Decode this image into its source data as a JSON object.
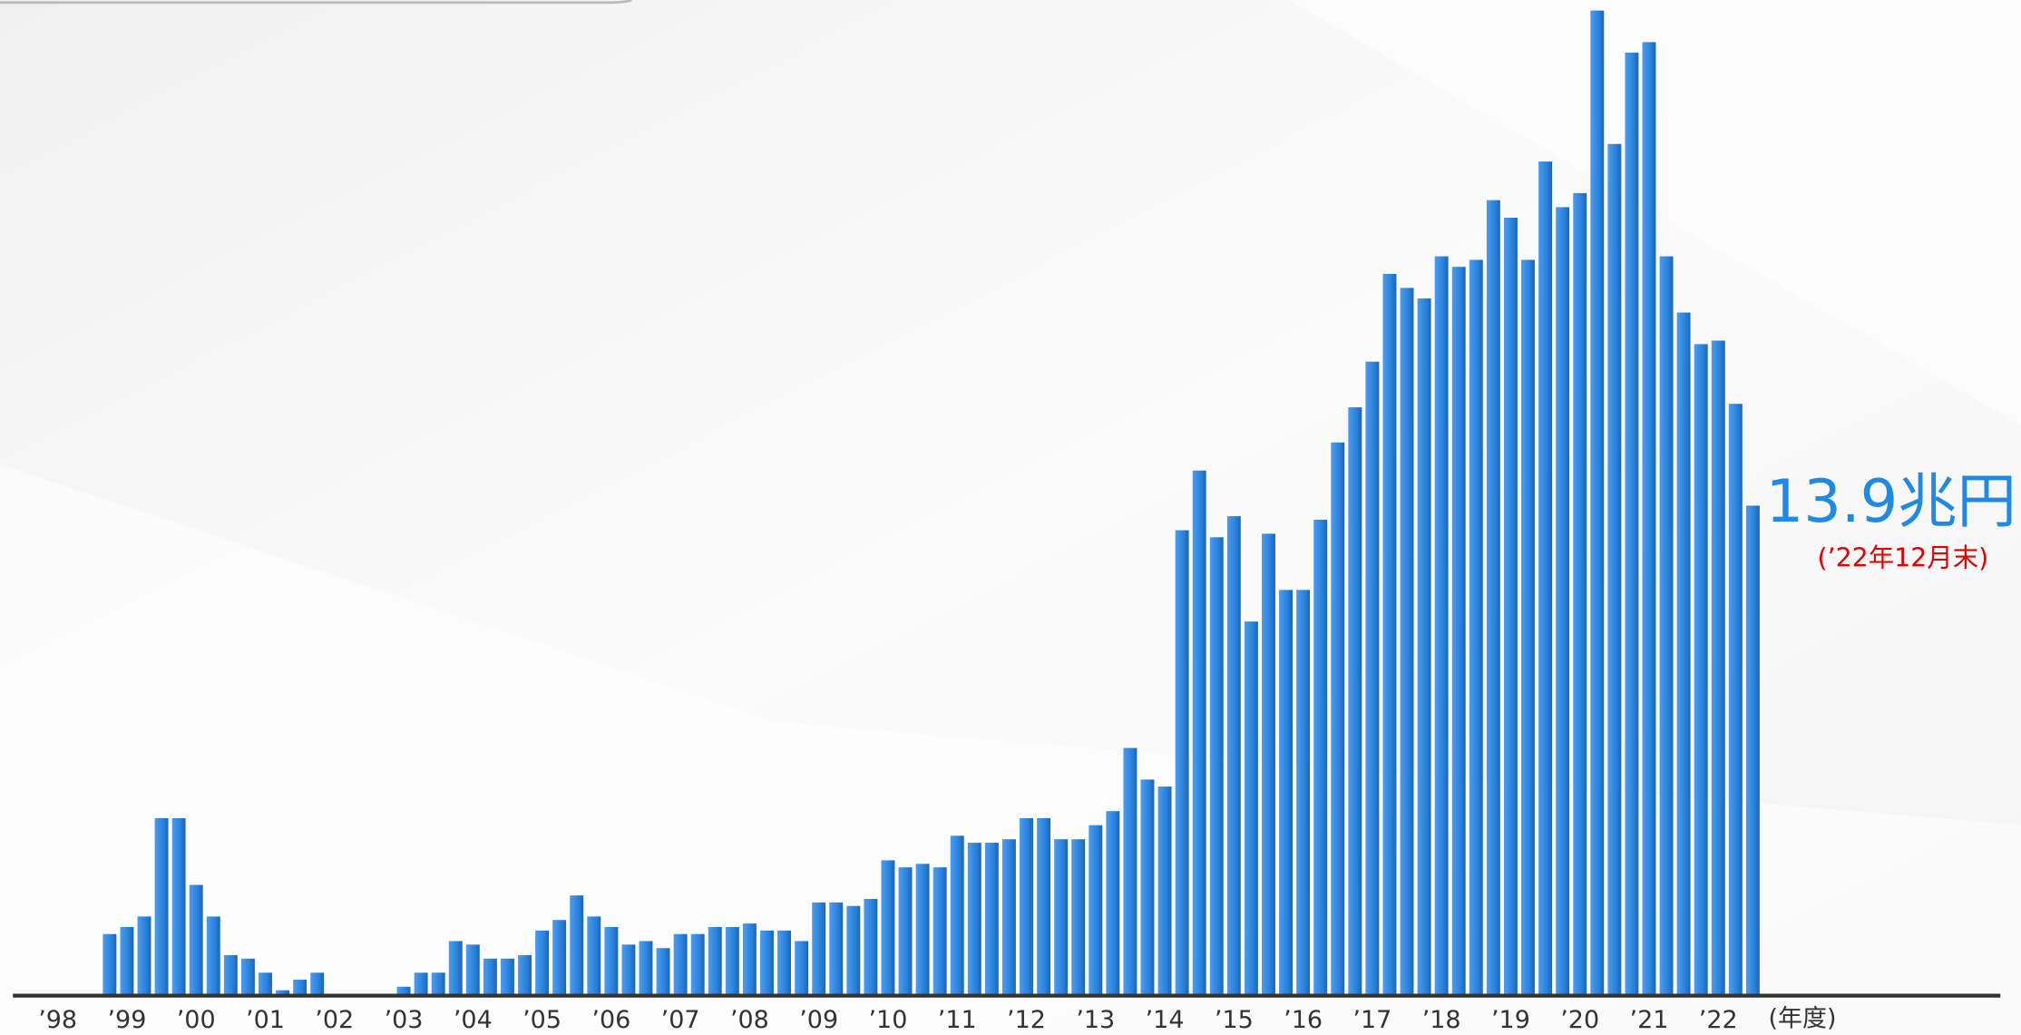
{
  "chart_data": {
    "type": "bar",
    "categories": [
      "’98",
      null,
      null,
      null,
      "’99",
      null,
      null,
      null,
      "’00",
      null,
      null,
      null,
      "’01",
      null,
      null,
      null,
      "’02",
      null,
      null,
      null,
      "’03",
      null,
      null,
      null,
      "’04",
      null,
      null,
      null,
      "’05",
      null,
      null,
      null,
      "’06",
      null,
      null,
      null,
      "’07",
      null,
      null,
      null,
      "’08",
      null,
      null,
      null,
      "’09",
      null,
      null,
      null,
      "’10",
      null,
      null,
      null,
      "’11",
      null,
      null,
      null,
      "’12",
      null,
      null,
      null,
      "’13",
      null,
      null,
      null,
      "’14",
      null,
      null,
      null,
      "’15",
      null,
      null,
      null,
      "’16",
      null,
      null,
      null,
      "’17",
      null,
      null,
      null,
      "’18",
      null,
      null,
      null,
      "’19",
      null,
      null,
      null,
      "’20",
      null,
      null,
      null,
      "’21",
      null,
      null,
      null,
      "’22",
      null,
      null
    ],
    "values": [
      null,
      null,
      null,
      1.7,
      1.9,
      2.2,
      5.0,
      5.0,
      3.1,
      2.2,
      1.1,
      1.0,
      0.6,
      0.1,
      0.4,
      0.6,
      0,
      0,
      0,
      0,
      0.2,
      0.6,
      0.6,
      1.5,
      1.4,
      1.0,
      1.0,
      1.1,
      1.8,
      2.1,
      2.8,
      2.2,
      1.9,
      1.4,
      1.5,
      1.3,
      1.7,
      1.7,
      1.9,
      1.9,
      2.0,
      1.8,
      1.8,
      1.5,
      2.6,
      2.6,
      2.5,
      2.7,
      3.8,
      3.6,
      3.7,
      3.6,
      4.5,
      4.3,
      4.3,
      4.4,
      5.0,
      5.0,
      4.4,
      4.4,
      4.8,
      5.2,
      7.0,
      6.1,
      5.9,
      13.2,
      14.9,
      13.0,
      13.6,
      10.6,
      13.1,
      11.5,
      11.5,
      13.5,
      15.7,
      16.7,
      18.0,
      20.5,
      20.1,
      19.8,
      21.0,
      20.7,
      20.9,
      22.6,
      22.1,
      20.9,
      23.7,
      22.4,
      22.8,
      28.0,
      24.2,
      26.8,
      27.1,
      21.0,
      19.4,
      18.5,
      18.6,
      16.8,
      13.9
    ],
    "color": "#2b82db",
    "ylim": [
      0,
      28.3
    ],
    "x_axis_unit": "(年度)",
    "annotation": "13.9兆円",
    "annotation_note": "(’22年12月末)"
  }
}
